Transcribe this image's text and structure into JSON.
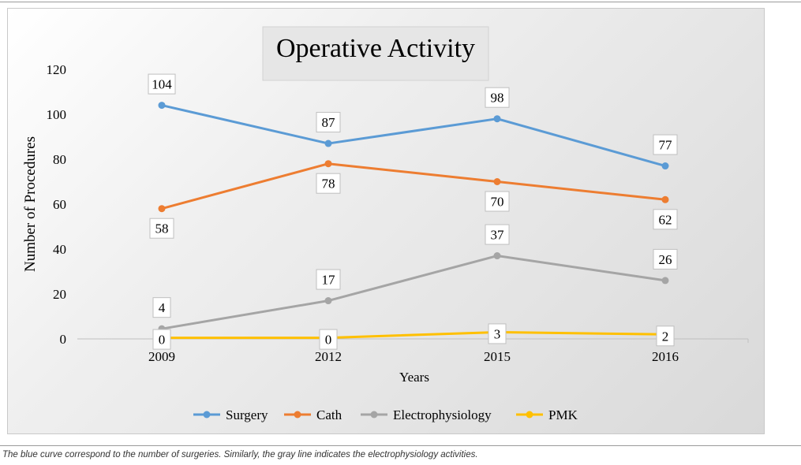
{
  "chart_data": {
    "type": "line",
    "title": "Operative Activity",
    "xlabel": "Years",
    "ylabel": "Number of Procedures",
    "categories": [
      "2009",
      "2012",
      "2015",
      "2016"
    ],
    "ylim": [
      0,
      120
    ],
    "yticks": [
      "0",
      "20",
      "40",
      "60",
      "80",
      "100",
      "120"
    ],
    "series": [
      {
        "name": "Surgery",
        "color": "#5b9bd5",
        "values": [
          104,
          87,
          98,
          77
        ],
        "labels": [
          "104",
          "87",
          "98",
          "77"
        ],
        "label_pos": [
          "above",
          "above",
          "above",
          "above"
        ]
      },
      {
        "name": "Cath",
        "color": "#ed7d31",
        "values": [
          58,
          78,
          70,
          62
        ],
        "labels": [
          "58",
          "78",
          "70",
          "62"
        ],
        "label_pos": [
          "below",
          "below",
          "below",
          "below"
        ]
      },
      {
        "name": "Electrophysiology",
        "color": "#a5a5a5",
        "values": [
          4.5,
          17,
          37,
          26
        ],
        "labels": [
          "4",
          "17",
          "37",
          "26"
        ],
        "label_pos": [
          "above",
          "above",
          "above",
          "above"
        ]
      },
      {
        "name": "PMK",
        "color": "#ffc000",
        "values": [
          0.5,
          0.5,
          3,
          2
        ],
        "labels": [
          "0",
          "0",
          "3",
          "2"
        ],
        "label_pos": [
          "on",
          "on",
          "on",
          "on"
        ]
      }
    ],
    "legend": "bottom"
  },
  "caption": "The blue curve correspond to the number of surgeries. Similarly, the gray line indicates the electrophysiology activities."
}
